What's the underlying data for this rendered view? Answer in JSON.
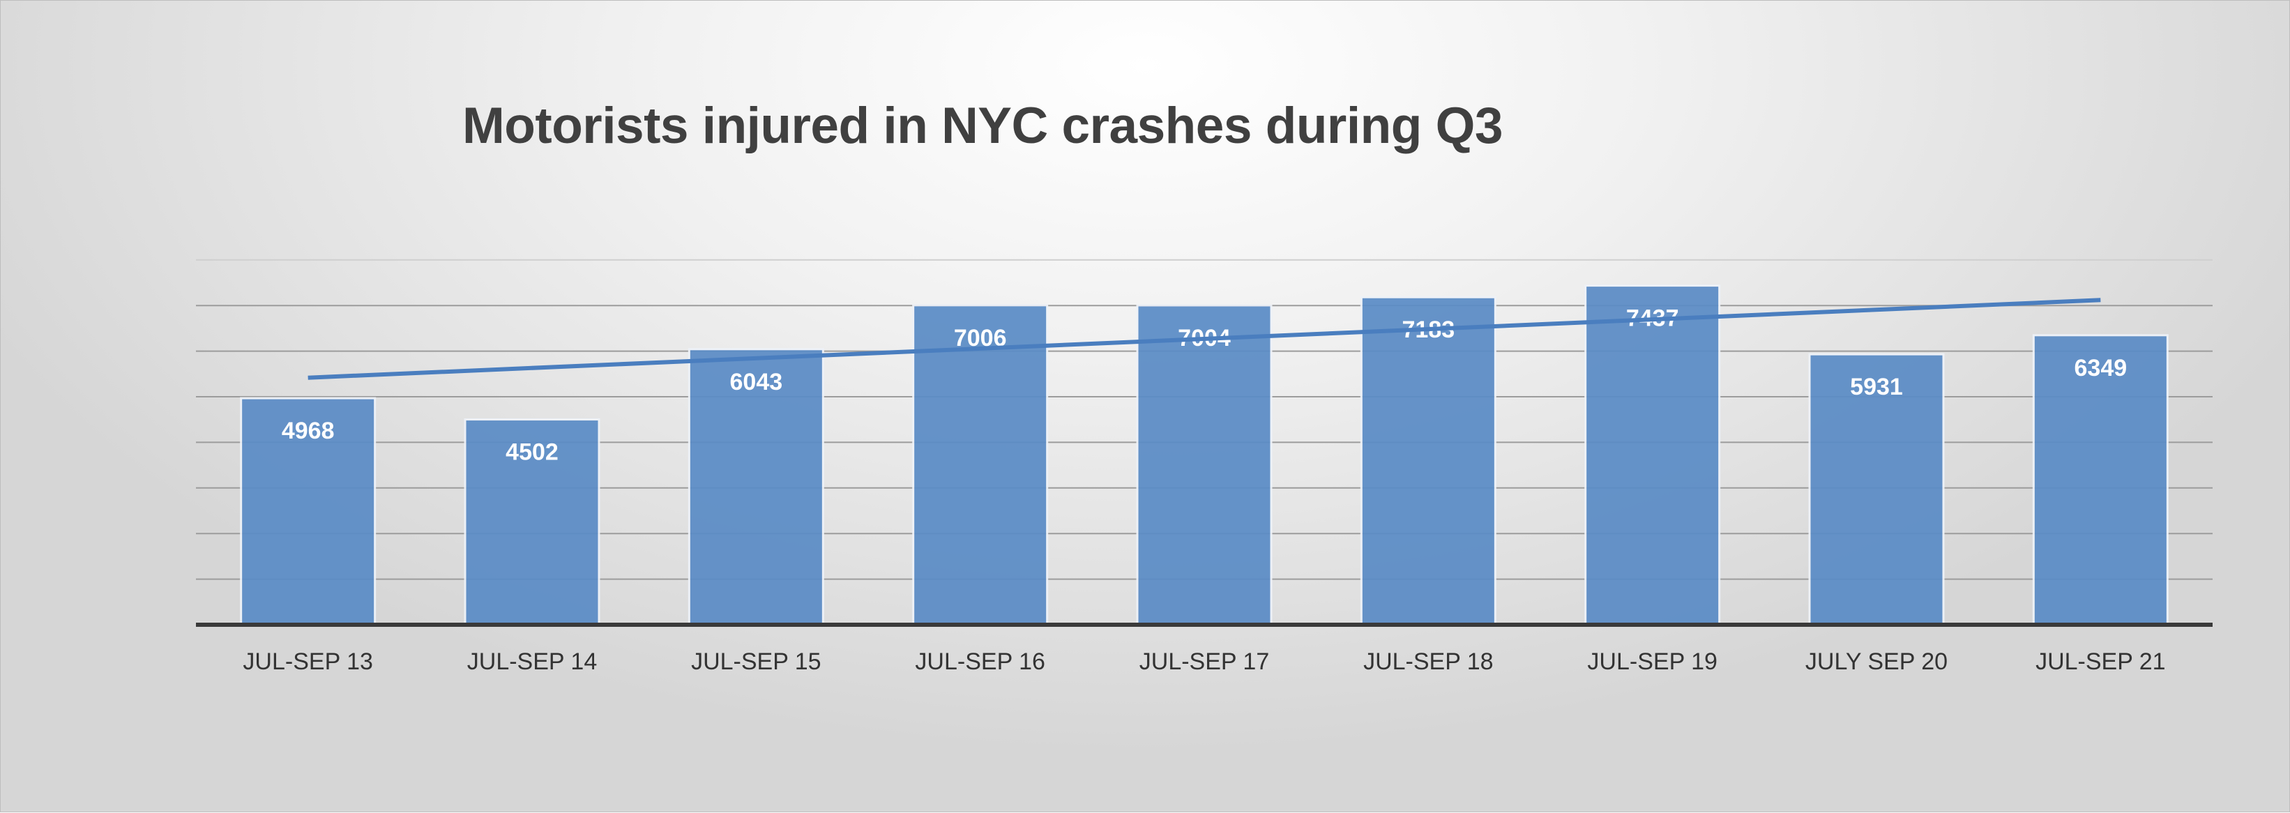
{
  "chart_data": {
    "type": "bar",
    "title": "Motorists injured in NYC crashes during Q3",
    "categories": [
      "JUL-SEP 13",
      "JUL-SEP 14",
      "JUL-SEP 15",
      "JUL-SEP 16",
      "JUL-SEP 17",
      "JUL-SEP 18",
      "JUL-SEP 19",
      "JULY SEP 20",
      "JUL-SEP 21"
    ],
    "values": [
      4968,
      4502,
      6043,
      7006,
      7004,
      7183,
      7437,
      5931,
      6349
    ],
    "ylim": [
      0,
      8000
    ],
    "y_gridline_step": 1000,
    "trendline": "linear",
    "data_labels": true,
    "axis_tick_labels_y": false,
    "legend": "none",
    "colors": {
      "bar": "#5b8cc6",
      "trendline": "#4a7ebf",
      "title": "#404040"
    }
  }
}
